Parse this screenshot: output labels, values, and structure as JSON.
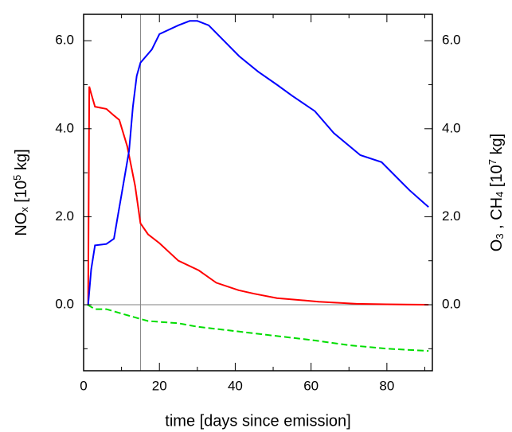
{
  "chart_data": {
    "type": "line",
    "xlabel": "time [days since emission]",
    "ylabel": [
      {
        "text": "NO"
      },
      {
        "text": "x",
        "shift": "sub"
      },
      {
        "text": " [10"
      },
      {
        "text": "5",
        "shift": "super"
      },
      {
        "text": " kg]"
      }
    ],
    "y2label": [
      {
        "text": "O"
      },
      {
        "text": "3",
        "shift": "sub"
      },
      {
        "text": " , CH"
      },
      {
        "text": "4",
        "shift": "sub"
      },
      {
        "text": " [10"
      },
      {
        "text": "7",
        "shift": "super"
      },
      {
        "text": " kg]"
      }
    ],
    "xlim": [
      0,
      92
    ],
    "xticks": [
      0,
      20,
      40,
      60,
      80
    ],
    "xminor": [
      10,
      30,
      50,
      70,
      90
    ],
    "ylim": [
      -1.5,
      6.6
    ],
    "yticks": [
      {
        "value": 0,
        "label": "0.0"
      },
      {
        "value": 2,
        "label": "2.0"
      },
      {
        "value": 4,
        "label": "4.0"
      },
      {
        "value": 6,
        "label": "6.0"
      }
    ],
    "yminor": [
      -1,
      1,
      3,
      5
    ],
    "y2lim": [
      -1.5,
      6.6
    ],
    "y2ticks": [
      {
        "value": 0,
        "label": "0.0"
      },
      {
        "value": 2,
        "label": "2.0"
      },
      {
        "value": 4,
        "label": "4.0"
      },
      {
        "value": 6,
        "label": "6.0"
      }
    ],
    "reference_lines": {
      "x": 15,
      "y": 0,
      "color": "#808080"
    },
    "series": [
      {
        "color": "#ff0000",
        "dash": false,
        "x": [
          1.2,
          1.5,
          2,
          3,
          6,
          8,
          9.4,
          11.5,
          13.6,
          15,
          17,
          20,
          25,
          30.4,
          35,
          40.9,
          45,
          51,
          62,
          72,
          80,
          91
        ],
        "values": [
          0,
          4.96,
          4.8,
          4.5,
          4.45,
          4.3,
          4.2,
          3.6,
          2.7,
          1.85,
          1.6,
          1.4,
          1.0,
          0.78,
          0.5,
          0.33,
          0.25,
          0.15,
          0.07,
          0.02,
          0.01,
          0
        ]
      },
      {
        "color": "#0000ff",
        "dash": false,
        "axis": "y2",
        "x": [
          1.2,
          2,
          3,
          6,
          8,
          9,
          10,
          12,
          13,
          14,
          15,
          18,
          20,
          25,
          28,
          30,
          33,
          37,
          41,
          46,
          51,
          55,
          61,
          66,
          73,
          78.6,
          86,
          91
        ],
        "values": [
          0,
          0.8,
          1.35,
          1.38,
          1.5,
          2.0,
          2.5,
          3.5,
          4.5,
          5.2,
          5.5,
          5.8,
          6.15,
          6.35,
          6.45,
          6.45,
          6.35,
          6.0,
          5.65,
          5.3,
          5.0,
          4.75,
          4.4,
          3.9,
          3.4,
          3.24,
          2.6,
          2.22
        ]
      },
      {
        "color": "#00dd00",
        "dash": true,
        "axis": "y2",
        "x": [
          1,
          3,
          6,
          10,
          14,
          17,
          25,
          30,
          40,
          50,
          60,
          70,
          80,
          91
        ],
        "values": [
          0,
          -0.1,
          -0.1,
          -0.2,
          -0.3,
          -0.37,
          -0.42,
          -0.5,
          -0.6,
          -0.7,
          -0.8,
          -0.92,
          -1.0,
          -1.05
        ]
      }
    ]
  }
}
